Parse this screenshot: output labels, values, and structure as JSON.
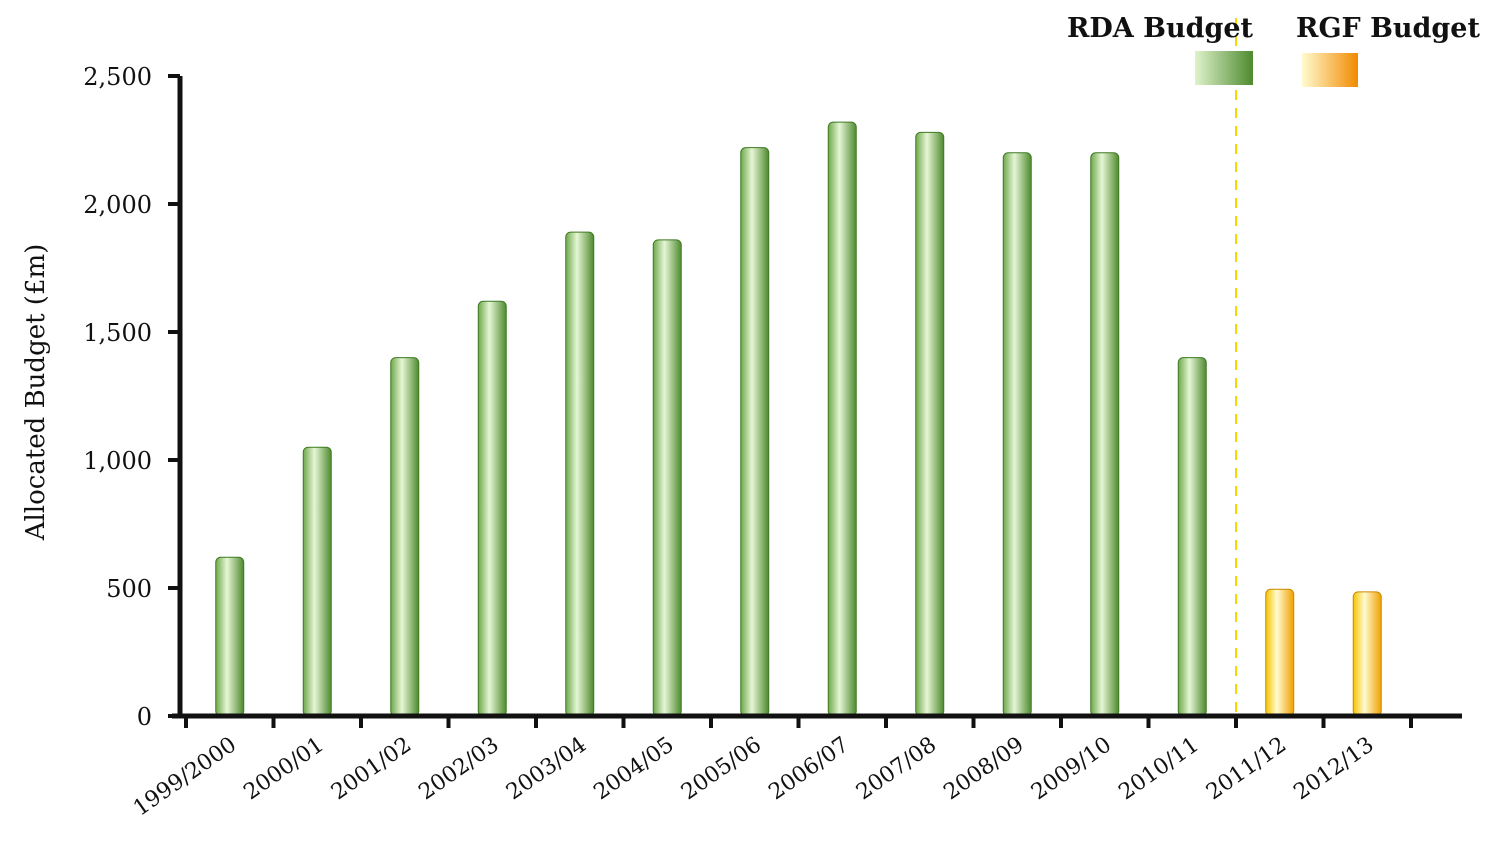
{
  "chart_data": {
    "type": "bar",
    "ylabel": "Allocated Budget (£m)",
    "xlabel": "",
    "ylim": [
      0,
      2500
    ],
    "yticks": [
      0,
      500,
      1000,
      1500,
      2000,
      2500
    ],
    "ytick_labels": [
      "0",
      "500",
      "1,000",
      "1,500",
      "2,000",
      "2,500"
    ],
    "categories": [
      "1999/2000",
      "2000/01",
      "2001/02",
      "2002/03",
      "2003/04",
      "2004/05",
      "2005/06",
      "2006/07",
      "2007/08",
      "2008/09",
      "2009/10",
      "2010/11",
      "2011/12",
      "2012/13"
    ],
    "series": [
      {
        "name": "RDA Budget",
        "color_light": "#d8f0c0",
        "color_dark": "#4e8a2e",
        "values": [
          620,
          1050,
          1400,
          1620,
          1890,
          1860,
          2220,
          2320,
          2280,
          2200,
          2200,
          1400,
          null,
          null
        ]
      },
      {
        "name": "RGF Budget",
        "color_light": "#fff7b0",
        "color_dark": "#f29a00",
        "values": [
          null,
          null,
          null,
          null,
          null,
          null,
          null,
          null,
          null,
          null,
          null,
          null,
          495,
          485
        ]
      }
    ],
    "legend_position": "top-right",
    "separator": {
      "after_category": "2010/11",
      "style": "dashed",
      "color": "#f5d800"
    },
    "grid": false
  }
}
